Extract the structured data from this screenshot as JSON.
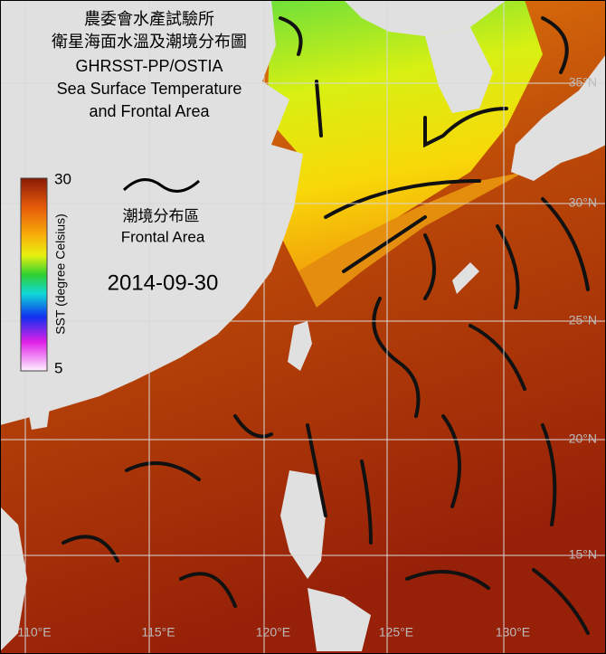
{
  "header": {
    "title_lines": [
      "農委會水產試驗所",
      "衛星海面水溫及潮境分布圖",
      "GHRSST-PP/OSTIA",
      "Sea Surface Temperature",
      "and Frontal Area"
    ]
  },
  "colorbar": {
    "max": 30,
    "min": 5,
    "label": "SST (degree Celsius)"
  },
  "legend": {
    "label_zh": "潮境分布區",
    "label_en": "Frontal Area"
  },
  "date": "2014-09-30",
  "lat_labels": [
    "35°N",
    "30°N",
    "25°N",
    "20°N",
    "15°N"
  ],
  "lon_labels": [
    "110°E",
    "115°E",
    "120°E",
    "125°E",
    "130°E"
  ]
}
